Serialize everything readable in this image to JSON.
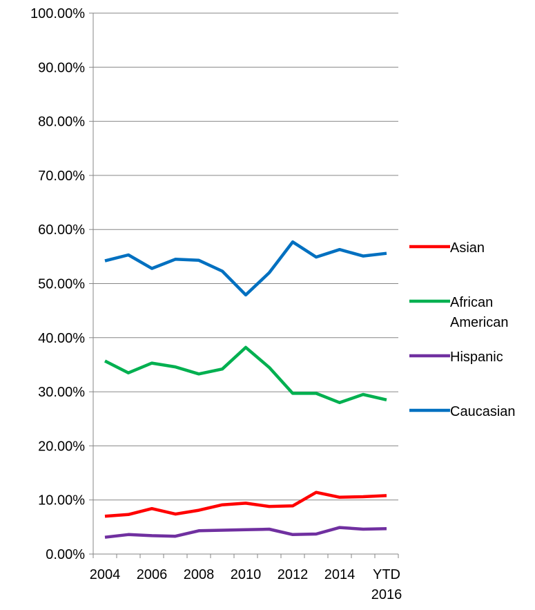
{
  "chart_data": {
    "type": "line",
    "title": "",
    "xlabel": "",
    "ylabel": "",
    "ylim": [
      0,
      100
    ],
    "y_tick_labels": [
      "0.00%",
      "10.00%",
      "20.00%",
      "30.00%",
      "40.00%",
      "50.00%",
      "60.00%",
      "70.00%",
      "80.00%",
      "90.00%",
      "100.00%"
    ],
    "categories": [
      "2004",
      "2005",
      "2006",
      "2007",
      "2008",
      "2009",
      "2010",
      "2011",
      "2012",
      "2013",
      "2014",
      "2015",
      "YTD 2016"
    ],
    "x_tick_labels": [
      {
        "category_index": 0,
        "lines": [
          "2004"
        ]
      },
      {
        "category_index": 2,
        "lines": [
          "2006"
        ]
      },
      {
        "category_index": 4,
        "lines": [
          "2008"
        ]
      },
      {
        "category_index": 6,
        "lines": [
          "2010"
        ]
      },
      {
        "category_index": 8,
        "lines": [
          "2012"
        ]
      },
      {
        "category_index": 10,
        "lines": [
          "2014"
        ]
      },
      {
        "category_index": 12,
        "lines": [
          "YTD",
          "2016"
        ]
      }
    ],
    "grid": true,
    "legend_position": "right",
    "series": [
      {
        "name": "Asian",
        "color": "#ff0000",
        "values": [
          7.0,
          7.3,
          8.4,
          7.4,
          8.1,
          9.1,
          9.4,
          8.8,
          8.9,
          11.4,
          10.5,
          10.6,
          10.8
        ]
      },
      {
        "name": "African American",
        "legend_lines": [
          "African",
          "American"
        ],
        "color": "#00b050",
        "values": [
          35.7,
          33.5,
          35.3,
          34.6,
          33.3,
          34.2,
          38.2,
          34.5,
          29.7,
          29.7,
          28.0,
          29.5,
          28.5
        ]
      },
      {
        "name": "Hispanic",
        "color": "#7030a0",
        "values": [
          3.1,
          3.6,
          3.4,
          3.3,
          4.3,
          4.4,
          4.5,
          4.6,
          3.6,
          3.7,
          4.9,
          4.6,
          4.7
        ]
      },
      {
        "name": "Caucasian",
        "color": "#0070c0",
        "values": [
          54.2,
          55.3,
          52.8,
          54.5,
          54.3,
          52.3,
          47.9,
          52.0,
          57.7,
          54.9,
          56.3,
          55.1,
          55.6
        ]
      }
    ]
  }
}
